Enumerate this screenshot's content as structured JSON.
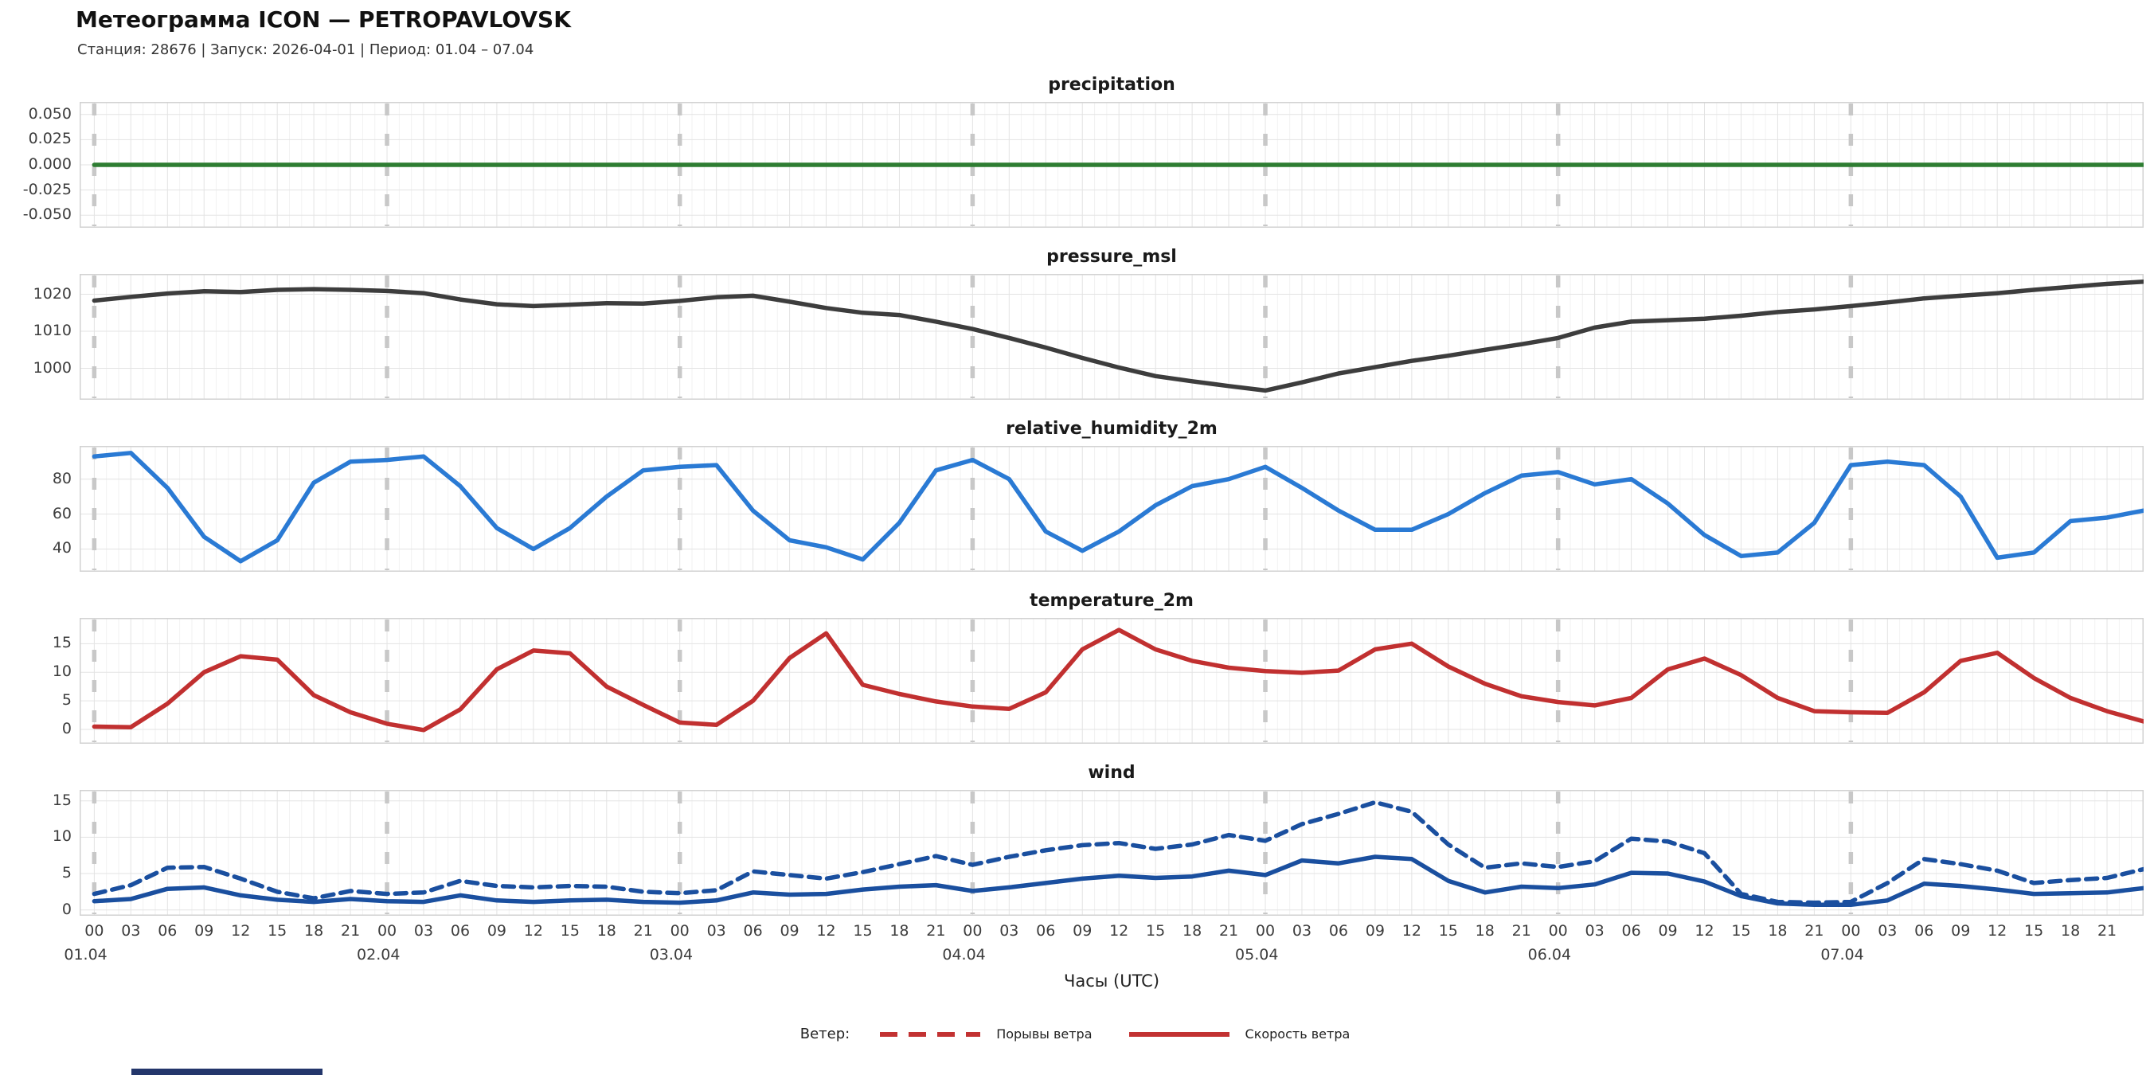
{
  "header": {
    "title": "Метеограмма ICON — PETROPAVLOVSK",
    "subtitle": "Станция: 28676  | Запуск: 2026-04-01  | Период: 01.04 – 07.04"
  },
  "xaxis": {
    "label": "Часы (UTC)",
    "hour_labels": [
      "00",
      "03",
      "06",
      "09",
      "12",
      "15",
      "18",
      "21"
    ],
    "days": [
      "01.04",
      "02.04",
      "03.04",
      "04.04",
      "05.04",
      "06.04",
      "07.04"
    ],
    "hours_per_day": 24,
    "sample_step_hours": 3
  },
  "legend": {
    "title": "Ветер:",
    "items": [
      {
        "label": "Порывы ветра",
        "style": "dashed",
        "color": "#c23232"
      },
      {
        "label": "Скорость ветра",
        "style": "solid",
        "color": "#c23232"
      }
    ]
  },
  "chart_data": [
    {
      "type": "line",
      "title": "precipitation",
      "ylim": [
        -0.0625,
        0.0625
      ],
      "yticks": [
        {
          "v": 0.05,
          "label": "0.050"
        },
        {
          "v": 0.025,
          "label": "0.025"
        },
        {
          "v": 0.0,
          "label": "0.000"
        },
        {
          "v": -0.025,
          "label": "-0.025"
        },
        {
          "v": -0.05,
          "label": "-0.050"
        }
      ],
      "series": [
        {
          "name": "precipitation",
          "color": "#2e7d32",
          "dashed": false,
          "values": [
            0,
            0,
            0,
            0,
            0,
            0,
            0,
            0,
            0,
            0,
            0,
            0,
            0,
            0,
            0,
            0,
            0,
            0,
            0,
            0,
            0,
            0,
            0,
            0,
            0,
            0,
            0,
            0,
            0,
            0,
            0,
            0,
            0,
            0,
            0,
            0,
            0,
            0,
            0,
            0,
            0,
            0,
            0,
            0,
            0,
            0,
            0,
            0,
            0,
            0,
            0,
            0,
            0,
            0,
            0,
            0,
            0
          ]
        }
      ]
    },
    {
      "type": "line",
      "title": "pressure_msl",
      "ylim": [
        991.5,
        1025.5
      ],
      "yticks": [
        {
          "v": 1020,
          "label": "1020"
        },
        {
          "v": 1010,
          "label": "1010"
        },
        {
          "v": 1000,
          "label": "1000"
        }
      ],
      "series": [
        {
          "name": "pressure_msl",
          "color": "#3d3d3d",
          "dashed": false,
          "values": [
            1018.3,
            1019.3,
            1020.2,
            1020.8,
            1020.6,
            1021.2,
            1021.4,
            1021.2,
            1020.9,
            1020.3,
            1018.6,
            1017.3,
            1016.8,
            1017.2,
            1017.6,
            1017.5,
            1018.2,
            1019.2,
            1019.6,
            1018.0,
            1016.3,
            1015.0,
            1014.4,
            1012.6,
            1010.6,
            1008.2,
            1005.6,
            1002.8,
            1000.2,
            997.9,
            996.5,
            995.2,
            994.0,
            996.2,
            998.6,
            1000.3,
            1002.0,
            1003.4,
            1005.0,
            1006.5,
            1008.2,
            1011.0,
            1012.6,
            1013.0,
            1013.4,
            1014.2,
            1015.2,
            1015.9,
            1016.8,
            1017.8,
            1018.9,
            1019.6,
            1020.3,
            1021.2,
            1022.0,
            1022.8,
            1023.4
          ]
        }
      ]
    },
    {
      "type": "line",
      "title": "relative_humidity_2m",
      "ylim": [
        27,
        99
      ],
      "yticks": [
        {
          "v": 80,
          "label": "80"
        },
        {
          "v": 60,
          "label": "60"
        },
        {
          "v": 40,
          "label": "40"
        }
      ],
      "series": [
        {
          "name": "relative_humidity_2m",
          "color": "#2a7ad4",
          "dashed": false,
          "values": [
            93,
            95,
            75,
            47,
            33,
            45,
            78,
            90,
            91,
            93,
            76,
            52,
            40,
            52,
            70,
            85,
            87,
            88,
            62,
            45,
            41,
            34,
            55,
            85,
            91,
            80,
            50,
            39,
            50,
            65,
            76,
            80,
            87,
            75,
            62,
            51,
            51,
            60,
            72,
            82,
            84,
            77,
            80,
            66,
            48,
            36,
            38,
            55,
            88,
            90,
            88,
            70,
            35,
            38,
            56,
            58,
            62
          ]
        }
      ]
    },
    {
      "type": "line",
      "title": "temperature_2m",
      "ylim": [
        -2.5,
        19.5
      ],
      "yticks": [
        {
          "v": 15,
          "label": "15"
        },
        {
          "v": 10,
          "label": "10"
        },
        {
          "v": 5,
          "label": "5"
        },
        {
          "v": 0,
          "label": "0"
        }
      ],
      "series": [
        {
          "name": "temperature_2m",
          "color": "#c13030",
          "dashed": false,
          "values": [
            0.5,
            0.4,
            4.5,
            10.0,
            12.8,
            12.2,
            6.0,
            3.0,
            1.0,
            -0.1,
            3.5,
            10.5,
            13.8,
            13.3,
            7.5,
            4.3,
            1.2,
            0.8,
            5.0,
            12.5,
            16.8,
            7.8,
            6.2,
            4.9,
            4.0,
            3.6,
            6.5,
            14.0,
            17.4,
            14.0,
            12.0,
            10.8,
            10.2,
            9.9,
            10.3,
            14.0,
            15.0,
            11.0,
            8.0,
            5.8,
            4.8,
            4.2,
            5.5,
            10.5,
            12.4,
            9.5,
            5.5,
            3.2,
            3.0,
            2.9,
            6.5,
            12.0,
            13.4,
            9.0,
            5.5,
            3.2,
            1.4
          ]
        }
      ]
    },
    {
      "type": "line",
      "title": "wind",
      "ylim": [
        -0.8,
        16.5
      ],
      "yticks": [
        {
          "v": 15,
          "label": "15"
        },
        {
          "v": 10,
          "label": "10"
        },
        {
          "v": 5,
          "label": "5"
        },
        {
          "v": 0,
          "label": "0"
        }
      ],
      "series": [
        {
          "name": "Порывы ветра",
          "color": "#1a4f9f",
          "dashed": true,
          "values": [
            2.2,
            3.4,
            5.8,
            5.9,
            4.3,
            2.5,
            1.6,
            2.6,
            2.2,
            2.4,
            4.0,
            3.3,
            3.1,
            3.3,
            3.2,
            2.5,
            2.3,
            2.7,
            5.3,
            4.8,
            4.3,
            5.2,
            6.3,
            7.4,
            6.2,
            7.3,
            8.2,
            8.9,
            9.2,
            8.4,
            9.0,
            10.3,
            9.5,
            11.8,
            13.2,
            14.8,
            13.5,
            9.0,
            5.8,
            6.4,
            5.9,
            6.7,
            9.8,
            9.4,
            7.8,
            2.2,
            1.1,
            1.0,
            1.1,
            3.7,
            7.0,
            6.3,
            5.4,
            3.7,
            4.1,
            4.4,
            5.6
          ]
        },
        {
          "name": "Скорость ветра",
          "color": "#1a4f9f",
          "dashed": false,
          "values": [
            1.2,
            1.5,
            2.9,
            3.1,
            2.0,
            1.4,
            1.1,
            1.5,
            1.2,
            1.1,
            2.0,
            1.3,
            1.1,
            1.3,
            1.4,
            1.1,
            1.0,
            1.3,
            2.4,
            2.1,
            2.2,
            2.8,
            3.2,
            3.4,
            2.6,
            3.1,
            3.7,
            4.3,
            4.7,
            4.4,
            4.6,
            5.4,
            4.8,
            6.8,
            6.4,
            7.3,
            7.0,
            4.0,
            2.4,
            3.2,
            3.0,
            3.5,
            5.1,
            5.0,
            3.9,
            1.9,
            0.9,
            0.7,
            0.7,
            1.3,
            3.6,
            3.3,
            2.8,
            2.2,
            2.3,
            2.4,
            3.0
          ]
        }
      ]
    }
  ]
}
